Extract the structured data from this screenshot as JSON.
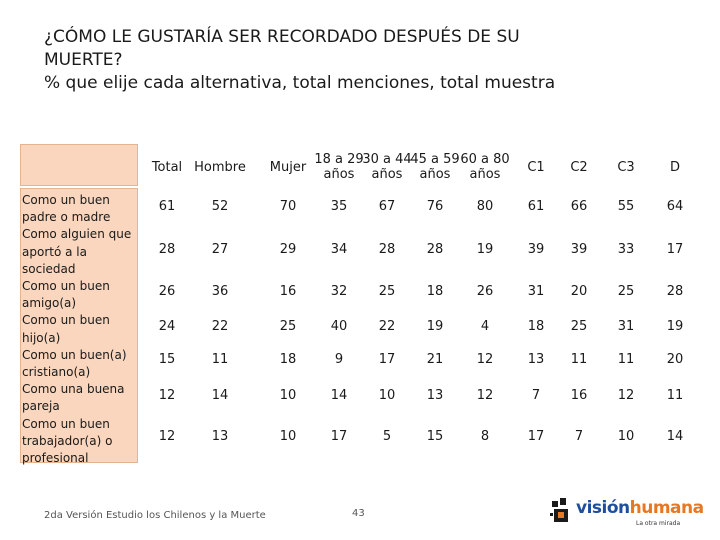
{
  "title": {
    "line1": "¿CÓMO LE GUSTARÍA SER RECORDADO DESPUÉS DE  SU",
    "line2": "MUERTE?",
    "line3": "% que elije cada alternativa, total menciones, total muestra"
  },
  "table": {
    "columns": [
      {
        "l1": "Total",
        "l2": ""
      },
      {
        "l1": "Hombre",
        "l2": ""
      },
      {
        "l1": "Mujer",
        "l2": ""
      },
      {
        "l1": "18 a 29",
        "l2": "años"
      },
      {
        "l1": "30 a 44",
        "l2": "años"
      },
      {
        "l1": "45 a 59",
        "l2": "años"
      },
      {
        "l1": "60 a 80",
        "l2": "años"
      },
      {
        "l1": "C1",
        "l2": ""
      },
      {
        "l1": "C2",
        "l2": ""
      },
      {
        "l1": "C3",
        "l2": ""
      },
      {
        "l1": "D",
        "l2": ""
      }
    ],
    "row_label_lines": [
      "Como un buen",
      "padre o madre",
      "Como alguien que",
      "aportó a la",
      "sociedad",
      "Como un buen",
      "amigo(a)",
      "Como un buen",
      "hijo(a)",
      "Como un buen(a)",
      "cristiano(a)",
      "Como una buena",
      "pareja",
      "Como un buen",
      "trabajador(a) o",
      "profesional"
    ],
    "rows": [
      [
        "61",
        "52",
        "70",
        "35",
        "67",
        "76",
        "80",
        "61",
        "66",
        "55",
        "64"
      ],
      [
        "28",
        "27",
        "29",
        "34",
        "28",
        "28",
        "19",
        "39",
        "39",
        "33",
        "17"
      ],
      [
        "26",
        "36",
        "16",
        "32",
        "25",
        "18",
        "26",
        "31",
        "20",
        "25",
        "28"
      ],
      [
        "24",
        "22",
        "25",
        "40",
        "22",
        "19",
        "4",
        "18",
        "25",
        "31",
        "19"
      ],
      [
        "15",
        "11",
        "18",
        "9",
        "17",
        "21",
        "12",
        "13",
        "11",
        "11",
        "20"
      ],
      [
        "12",
        "14",
        "10",
        "14",
        "10",
        "13",
        "12",
        "7",
        "16",
        "12",
        "11"
      ],
      [
        "12",
        "13",
        "10",
        "17",
        "5",
        "15",
        "8",
        "17",
        "7",
        "10",
        "14"
      ]
    ]
  },
  "footer": {
    "source": "2da Versión Estudio los Chilenos y la Muerte",
    "page": "43"
  },
  "logo": {
    "part1": "visión",
    "part2": "humana",
    "tagline": "La otra mirada"
  }
}
